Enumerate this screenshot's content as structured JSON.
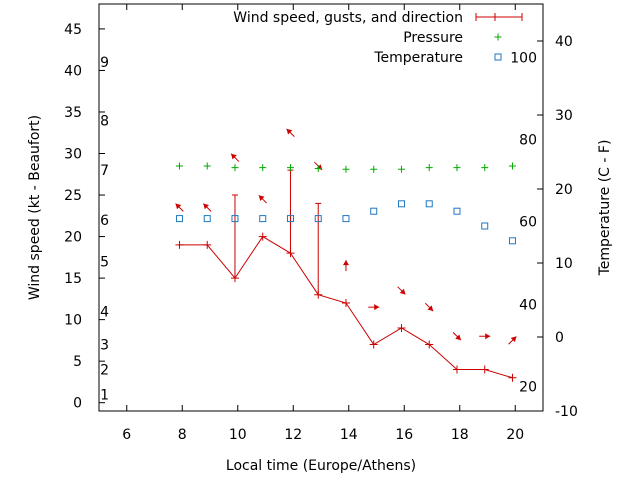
{
  "chart_data": {
    "type": "line",
    "xlabel": "Local time (Europe/Athens)",
    "ylabel_left": "Wind speed (kt - Beaufort)",
    "ylabel_right": "Temperature (C - F)",
    "xlim": [
      5,
      21
    ],
    "ylim_left": [
      -1,
      48
    ],
    "ylim_right": [
      -10,
      45
    ],
    "x_ticks": [
      6,
      8,
      10,
      12,
      14,
      16,
      18,
      20
    ],
    "y_ticks_left": [
      0,
      5,
      10,
      15,
      20,
      25,
      30,
      35,
      40,
      45
    ],
    "y_ticks_right": [
      -10,
      0,
      10,
      20,
      30,
      40
    ],
    "beaufort_labels": [
      {
        "label": "1",
        "kt": 1
      },
      {
        "label": "2",
        "kt": 4
      },
      {
        "label": "3",
        "kt": 7
      },
      {
        "label": "4",
        "kt": 11
      },
      {
        "label": "5",
        "kt": 17
      },
      {
        "label": "6",
        "kt": 22
      },
      {
        "label": "7",
        "kt": 28
      },
      {
        "label": "8",
        "kt": 34
      },
      {
        "label": "9",
        "kt": 41
      }
    ],
    "fahrenheit_labels": [
      {
        "label": "20",
        "c": -6.7
      },
      {
        "label": "40",
        "c": 4.4
      },
      {
        "label": "60",
        "c": 15.6
      },
      {
        "label": "80",
        "c": 26.7
      },
      {
        "label": "100",
        "c": 37.8
      }
    ],
    "legend": [
      "Wind speed, gusts, and direction",
      "Pressure",
      "Temperature"
    ],
    "legend_position": "top-right",
    "series": [
      {
        "name": "Wind speed, gusts, and direction",
        "color": "#cc0000",
        "x": [
          7.9,
          8.9,
          9.9,
          10.9,
          11.9,
          12.9,
          13.9,
          14.9,
          15.9,
          16.9,
          17.9,
          18.9,
          19.9
        ],
        "values": [
          19,
          19,
          15,
          20,
          18,
          13,
          12,
          7,
          9,
          7,
          4,
          4,
          3
        ],
        "gusts": [
          null,
          null,
          25,
          null,
          28,
          24,
          null,
          null,
          null,
          null,
          null,
          null,
          null
        ]
      },
      {
        "name": "Pressure",
        "color": "#00aa00",
        "x": [
          7.9,
          8.9,
          9.9,
          10.9,
          11.9,
          12.9,
          13.9,
          14.9,
          15.9,
          16.9,
          17.9,
          18.9,
          19.9
        ],
        "values": [
          28.5,
          28.5,
          28.3,
          28.3,
          28.3,
          28.2,
          28.1,
          28.1,
          28.1,
          28.3,
          28.3,
          28.3,
          28.5
        ]
      },
      {
        "name": "Temperature",
        "color": "#1f77c4",
        "x": [
          7.9,
          8.9,
          9.9,
          10.9,
          11.9,
          12.9,
          13.9,
          14.9,
          15.9,
          16.9,
          17.9,
          18.9,
          19.9
        ],
        "values": [
          16,
          16,
          16,
          16,
          16,
          16,
          16,
          17,
          18,
          18,
          17,
          15,
          13
        ]
      }
    ],
    "wind_direction_arrows": [
      {
        "x": 7.9,
        "y": 23.5,
        "dir": "nw"
      },
      {
        "x": 8.9,
        "y": 23.5,
        "dir": "nw"
      },
      {
        "x": 9.9,
        "y": 29.5,
        "dir": "nw"
      },
      {
        "x": 10.9,
        "y": 24.5,
        "dir": "nw"
      },
      {
        "x": 11.9,
        "y": 32.5,
        "dir": "nw"
      },
      {
        "x": 12.9,
        "y": 28.5,
        "dir": "se"
      },
      {
        "x": 13.9,
        "y": 16.5,
        "dir": "n"
      },
      {
        "x": 14.9,
        "y": 11.5,
        "dir": "e"
      },
      {
        "x": 15.9,
        "y": 13.5,
        "dir": "se"
      },
      {
        "x": 16.9,
        "y": 11.5,
        "dir": "se"
      },
      {
        "x": 17.9,
        "y": 8.0,
        "dir": "se"
      },
      {
        "x": 18.9,
        "y": 8.0,
        "dir": "e"
      },
      {
        "x": 19.9,
        "y": 7.5,
        "dir": "ne"
      }
    ]
  }
}
